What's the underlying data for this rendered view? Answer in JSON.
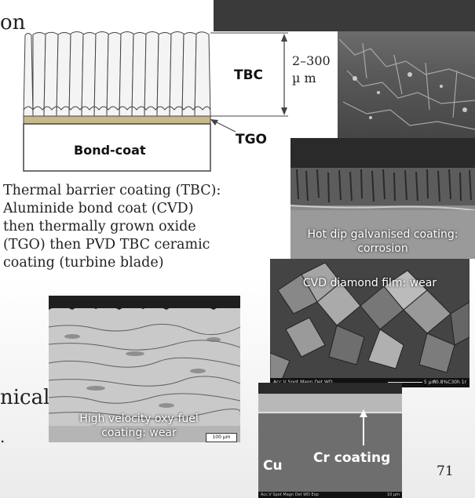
{
  "slide": {
    "edge_text_top": "on",
    "edge_text_mid": "nical",
    "edge_text_low": ".",
    "page_number": "71"
  },
  "tbc_diagram": {
    "label_tbc": "TBC",
    "label_thickness_1": "2–300",
    "label_thickness_2": "µ m",
    "label_tgo": "TGO",
    "label_bondcoat": "Bond-coat"
  },
  "tbc_caption": {
    "line1": "Thermal barrier coating (TBC):",
    "line2": "Aluminide bond coat (CVD)",
    "line3": "then thermally grown oxide",
    "line4": "(TGO) then PVD TBC ceramic",
    "line5": "coating (turbine blade)"
  },
  "galvanised": {
    "caption_line1": "Hot dip galvanised coating:",
    "caption_line2": "corrosion"
  },
  "diamond": {
    "caption": "CVD diamond film: wear",
    "sem_bar_left": "Acc.V  Spot Magn   Det  WD",
    "sem_scale": "5 µm",
    "sem_id": "F0.8%C30h 1r"
  },
  "hvof": {
    "caption_line1": "High velocity oxy-fuel",
    "caption_line2": "coating: wear",
    "scale_label": "100 µm"
  },
  "chromium": {
    "label_cu": "Cu",
    "label_cr": "Cr coating",
    "sem_bar_left": "Acc.V  Spot Magn   Det  WD  Exp",
    "sem_scale": "10 µm"
  }
}
